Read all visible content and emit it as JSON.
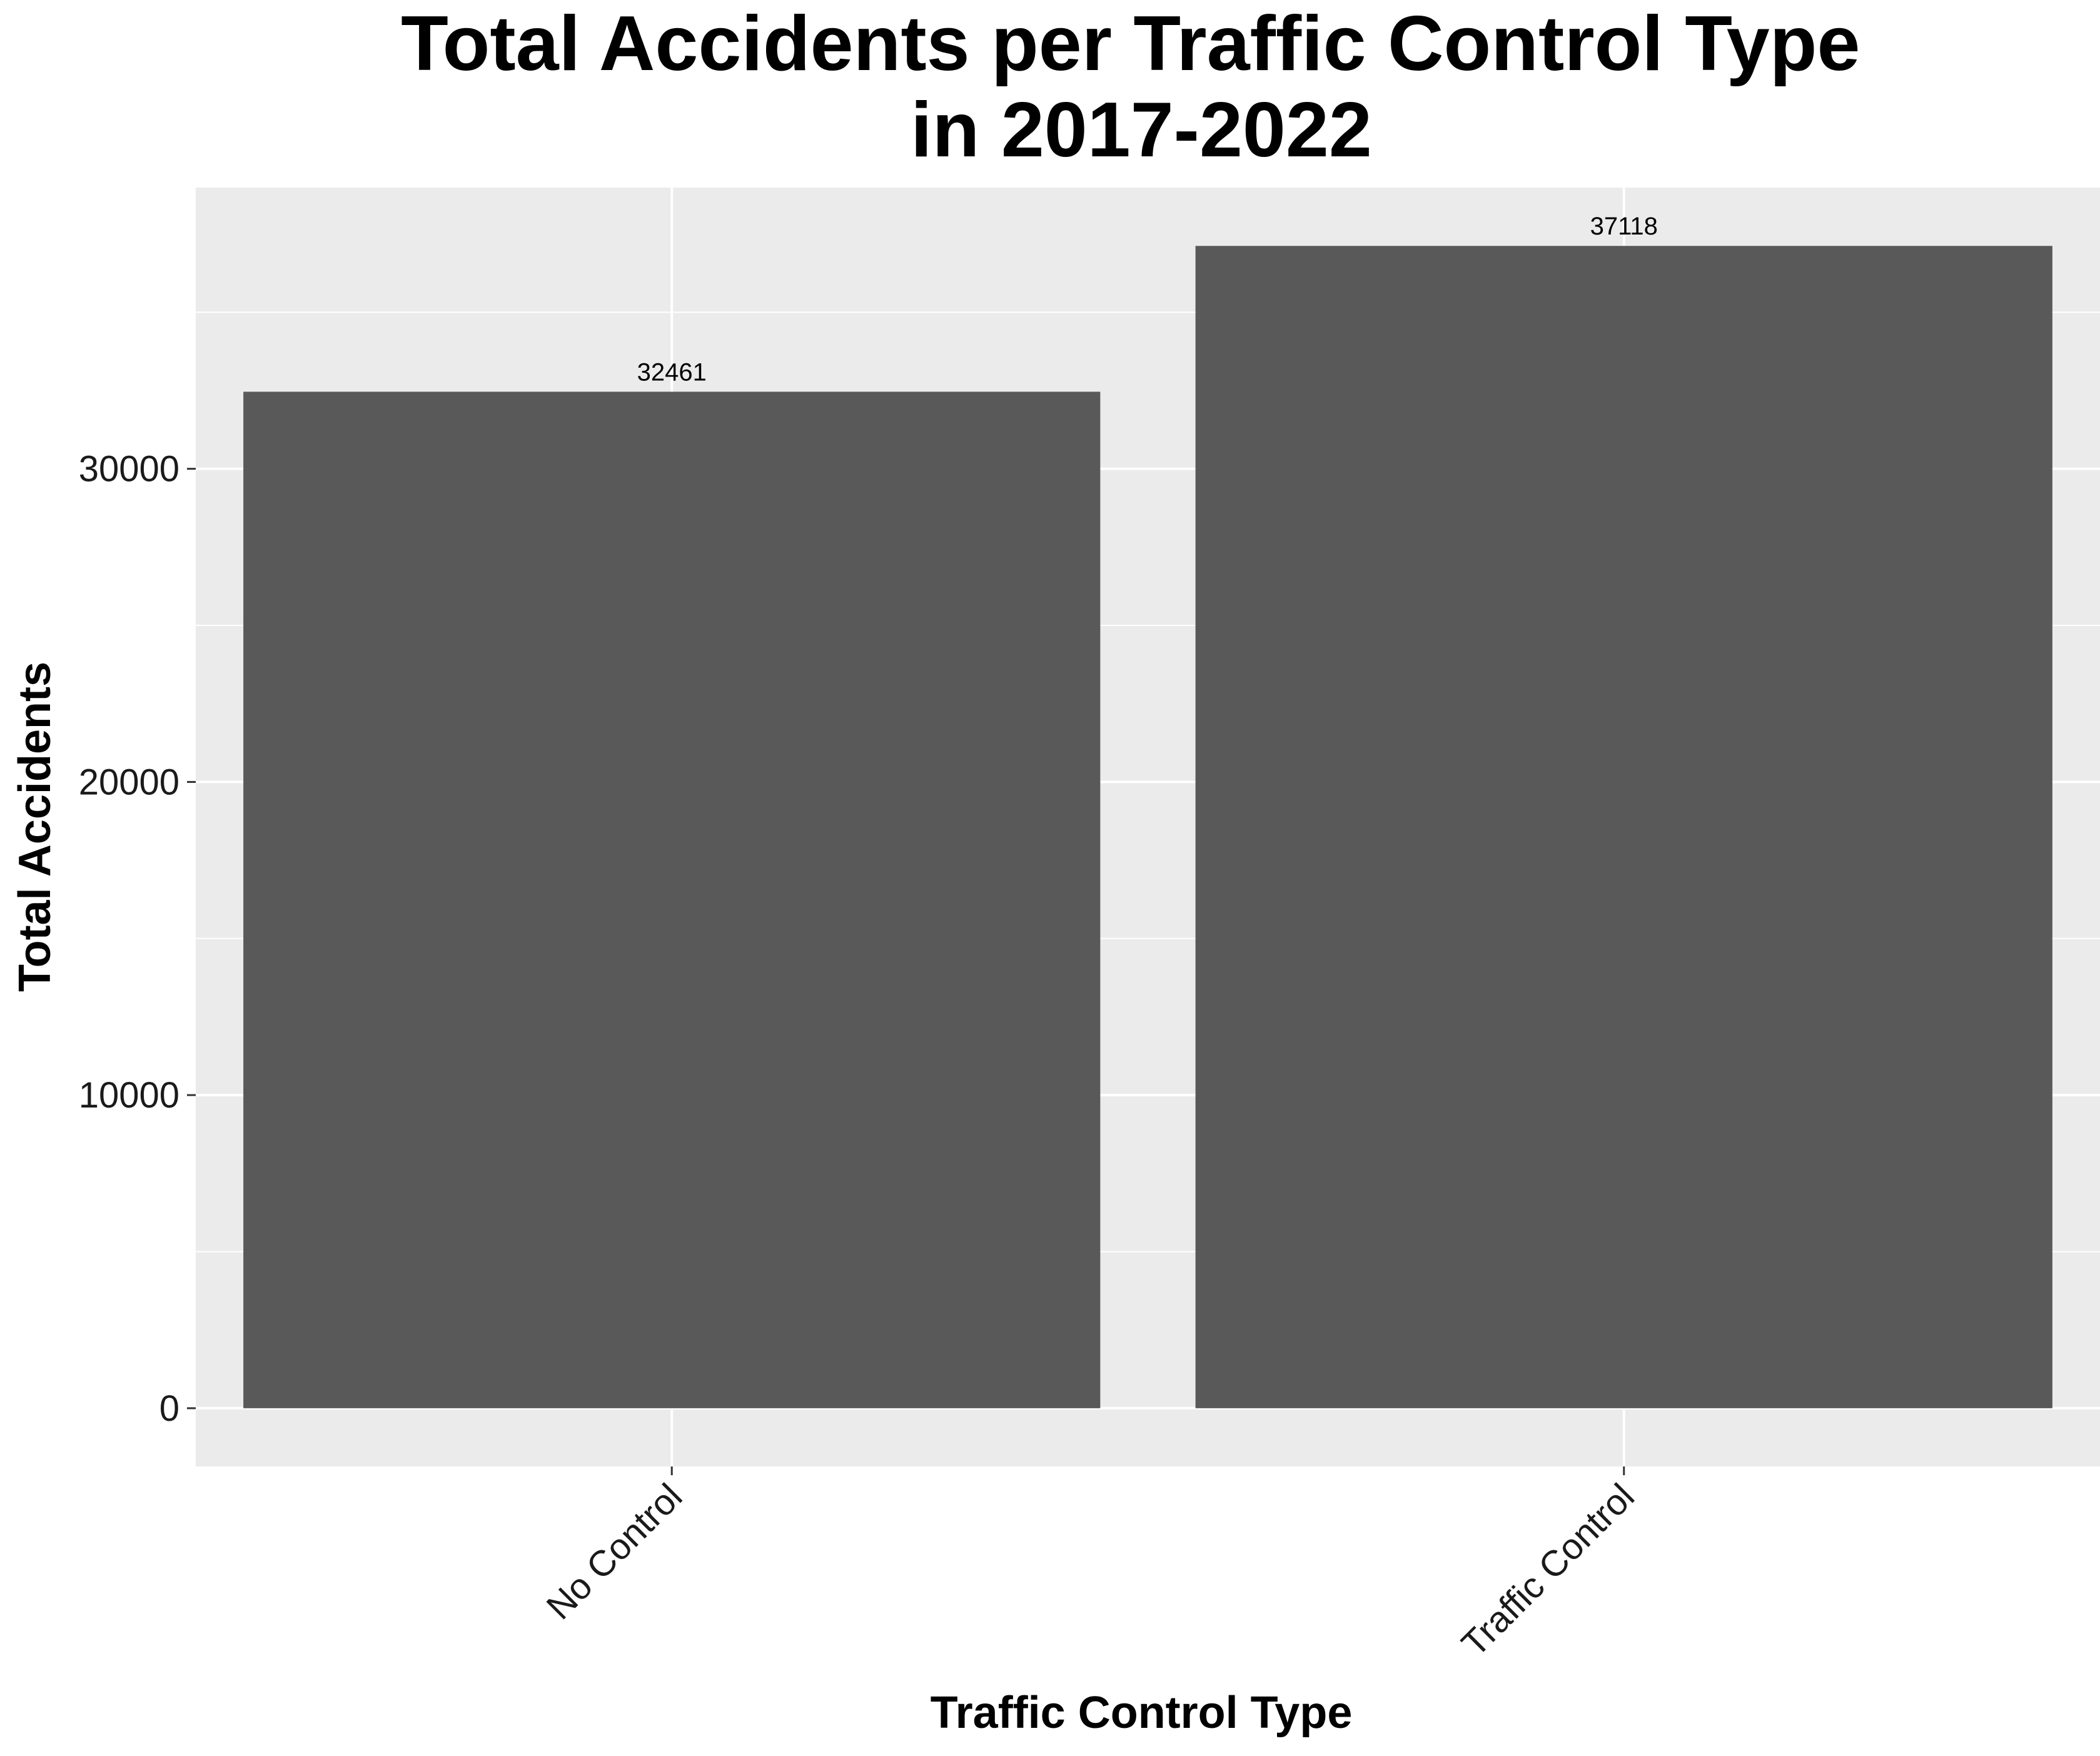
{
  "chart_data": {
    "type": "bar",
    "title_lines": [
      "Total Accidents per Traffic Control Type",
      "in 2017-2022"
    ],
    "xlabel": "Traffic Control Type",
    "ylabel": "Total Accidents",
    "categories": [
      "No Control",
      "Traffic Control"
    ],
    "values": [
      32461,
      37118
    ],
    "data_labels": [
      "32461",
      "37118"
    ],
    "ylim": [
      -1860,
      38980
    ],
    "yticks": [
      0,
      10000,
      20000,
      30000
    ],
    "ytick_labels": [
      "0",
      "10000",
      "20000",
      "30000"
    ],
    "y_minor_gridlines": [
      5000,
      15000,
      25000,
      35000
    ],
    "x_tick_label_rotation": -45,
    "grid": true,
    "legend": "none",
    "colors": {
      "panel_background": "#ebebeb",
      "grid": "#ffffff",
      "bar": "#595959",
      "tick": "#333333",
      "text": "#000000"
    }
  }
}
